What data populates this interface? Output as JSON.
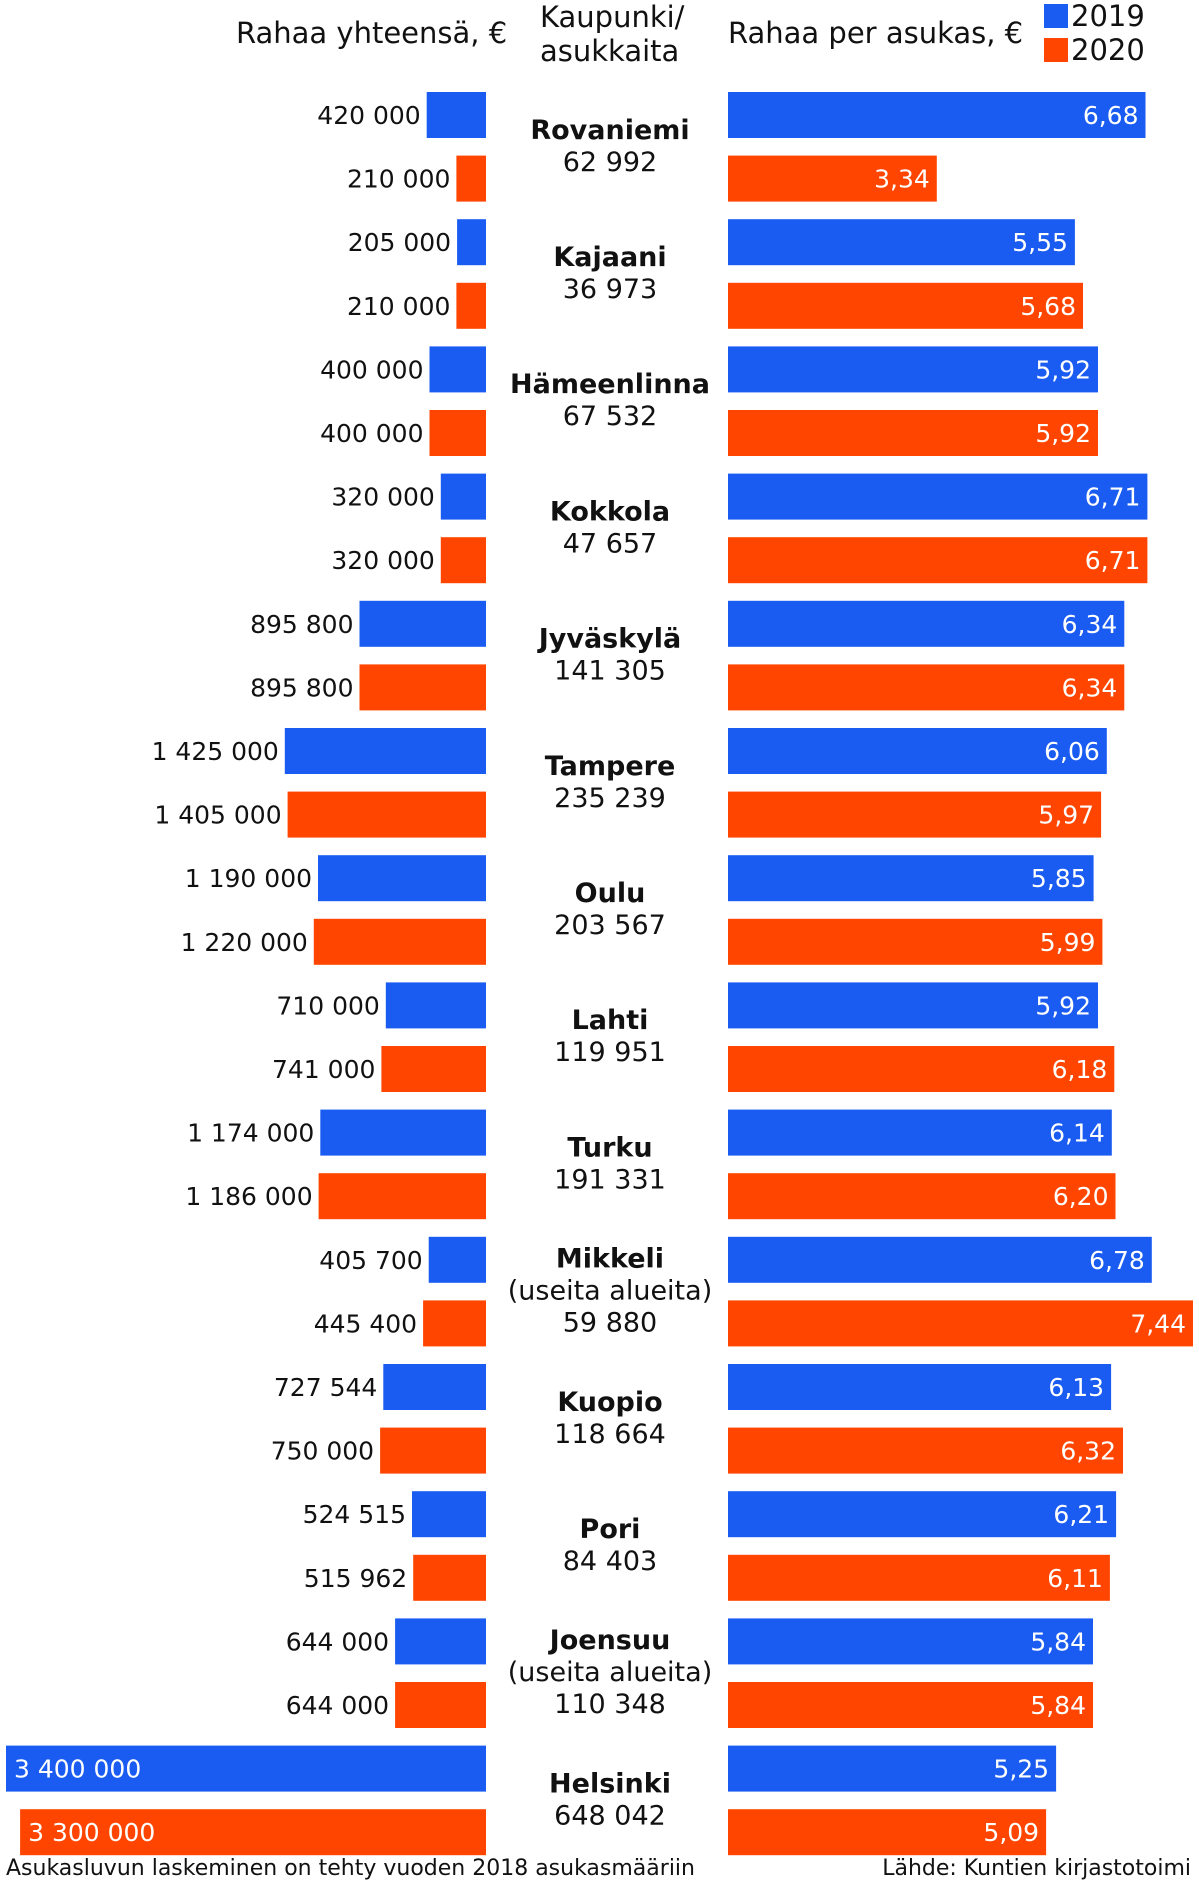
{
  "headers": {
    "left": "Rahaa yhteensä, €",
    "center_line1": "Kaupunki/",
    "center_line2": "asukkaita",
    "right": "Rahaa per asukas, €"
  },
  "legend": [
    {
      "label": "2019",
      "color": "#1a5cf2"
    },
    {
      "label": "2020",
      "color": "#ff4500"
    }
  ],
  "footer": {
    "note": "Asukasluvun laskeminen on tehty vuoden 2018 asukasmääriin",
    "source": "Lähde: Kuntien kirjastotoimi"
  },
  "chart_data": {
    "type": "bar",
    "orientation": "horizontal",
    "series_names": [
      "2019",
      "2020"
    ],
    "cities": [
      {
        "name": "Rovaniemi",
        "extra": "",
        "population": "62 992",
        "total_labels": [
          "420 000",
          "210 000"
        ],
        "total": [
          420000,
          210000
        ],
        "per_capita_labels": [
          "6,68",
          "3,34"
        ],
        "per_capita": [
          6.68,
          3.34
        ]
      },
      {
        "name": "Kajaani",
        "extra": "",
        "population": "36 973",
        "total_labels": [
          "205 000",
          "210 000"
        ],
        "total": [
          205000,
          210000
        ],
        "per_capita_labels": [
          "5,55",
          "5,68"
        ],
        "per_capita": [
          5.55,
          5.68
        ]
      },
      {
        "name": "Hämeenlinna",
        "extra": "",
        "population": "67 532",
        "total_labels": [
          "400 000",
          "400 000"
        ],
        "total": [
          400000,
          400000
        ],
        "per_capita_labels": [
          "5,92",
          "5,92"
        ],
        "per_capita": [
          5.92,
          5.92
        ]
      },
      {
        "name": "Kokkola",
        "extra": "",
        "population": "47 657",
        "total_labels": [
          "320 000",
          "320 000"
        ],
        "total": [
          320000,
          320000
        ],
        "per_capita_labels": [
          "6,71",
          "6,71"
        ],
        "per_capita": [
          6.71,
          6.71
        ]
      },
      {
        "name": "Jyväskylä",
        "extra": "",
        "population": "141 305",
        "total_labels": [
          "895 800",
          "895 800"
        ],
        "total": [
          895800,
          895800
        ],
        "per_capita_labels": [
          "6,34",
          "6,34"
        ],
        "per_capita": [
          6.34,
          6.34
        ]
      },
      {
        "name": "Tampere",
        "extra": "",
        "population": "235 239",
        "total_labels": [
          "1 425 000",
          "1 405 000"
        ],
        "total": [
          1425000,
          1405000
        ],
        "per_capita_labels": [
          "6,06",
          "5,97"
        ],
        "per_capita": [
          6.06,
          5.97
        ]
      },
      {
        "name": "Oulu",
        "extra": "",
        "population": "203 567",
        "total_labels": [
          "1 190 000",
          "1 220 000"
        ],
        "total": [
          1190000,
          1220000
        ],
        "per_capita_labels": [
          "5,85",
          "5,99"
        ],
        "per_capita": [
          5.85,
          5.99
        ]
      },
      {
        "name": "Lahti",
        "extra": "",
        "population": "119 951",
        "total_labels": [
          "710 000",
          "741 000"
        ],
        "total": [
          710000,
          741000
        ],
        "per_capita_labels": [
          "5,92",
          "6,18"
        ],
        "per_capita": [
          5.92,
          6.18
        ]
      },
      {
        "name": "Turku",
        "extra": "",
        "population": "191 331",
        "total_labels": [
          "1 174 000",
          "1 186 000"
        ],
        "total": [
          1174000,
          1186000
        ],
        "per_capita_labels": [
          "6,14",
          "6,20"
        ],
        "per_capita": [
          6.14,
          6.2
        ]
      },
      {
        "name": "Mikkeli",
        "extra": "(useita alueita)",
        "population": "59 880",
        "total_labels": [
          "405 700",
          "445 400"
        ],
        "total": [
          405700,
          445400
        ],
        "per_capita_labels": [
          "6,78",
          "7,44"
        ],
        "per_capita": [
          6.78,
          7.44
        ]
      },
      {
        "name": "Kuopio",
        "extra": "",
        "population": "118 664",
        "total_labels": [
          "727 544",
          "750 000"
        ],
        "total": [
          727544,
          750000
        ],
        "per_capita_labels": [
          "6,13",
          "6,32"
        ],
        "per_capita": [
          6.13,
          6.32
        ]
      },
      {
        "name": "Pori",
        "extra": "",
        "population": "84 403",
        "total_labels": [
          "524 515",
          "515 962"
        ],
        "total": [
          524515,
          515962
        ],
        "per_capita_labels": [
          "6,21",
          "6,11"
        ],
        "per_capita": [
          6.21,
          6.11
        ]
      },
      {
        "name": "Joensuu",
        "extra": "(useita alueita)",
        "population": "110 348",
        "total_labels": [
          "644 000",
          "644 000"
        ],
        "total": [
          644000,
          644000
        ],
        "per_capita_labels": [
          "5,84",
          "5,84"
        ],
        "per_capita": [
          5.84,
          5.84
        ]
      },
      {
        "name": "Helsinki",
        "extra": "",
        "population": "648 042",
        "total_labels": [
          "3 400 000",
          "3 300 000"
        ],
        "total": [
          3400000,
          3300000
        ],
        "per_capita_labels": [
          "5,25",
          "5,09"
        ],
        "per_capita": [
          5.25,
          5.09
        ]
      }
    ]
  }
}
